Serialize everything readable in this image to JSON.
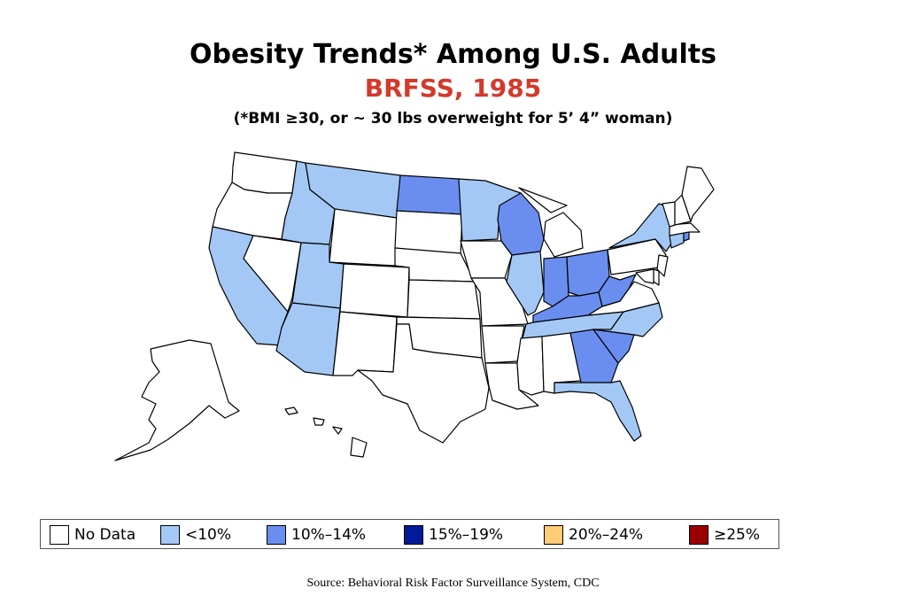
{
  "header": {
    "title": "Obesity Trends* Among U.S. Adults",
    "subtitle": "BRFSS, 1985",
    "note": "(*BMI ≥30, or ~ 30 lbs overweight for 5’ 4” woman)"
  },
  "legend": [
    {
      "label": "No Data",
      "color": "#ffffff"
    },
    {
      "label": "<10%",
      "color": "#a3c8f5"
    },
    {
      "label": "10%–14%",
      "color": "#6a8ef0"
    },
    {
      "label": "15%–19%",
      "color": "#001a99"
    },
    {
      "label": "20%–24%",
      "color": "#ffcc77"
    },
    {
      "label": "≥25%",
      "color": "#990000"
    }
  ],
  "states": {
    "WA": "No Data",
    "OR": "No Data",
    "CA": "<10%",
    "NV": "No Data",
    "ID": "<10%",
    "MT": "<10%",
    "WY": "No Data",
    "UT": "<10%",
    "AZ": "<10%",
    "CO": "No Data",
    "NM": "No Data",
    "ND": "10%–14%",
    "SD": "No Data",
    "NE": "No Data",
    "KS": "No Data",
    "OK": "No Data",
    "TX": "No Data",
    "MN": "<10%",
    "IA": "No Data",
    "MO": "No Data",
    "AR": "No Data",
    "LA": "No Data",
    "WI": "10%–14%",
    "IL": "<10%",
    "MI": "No Data",
    "IN": "10%–14%",
    "OH": "10%–14%",
    "KY": "10%–14%",
    "TN": "<10%",
    "MS": "No Data",
    "AL": "No Data",
    "GA": "10%–14%",
    "FL": "<10%",
    "SC": "10%–14%",
    "NC": "<10%",
    "VA": "No Data",
    "WV": "10%–14%",
    "PA": "No Data",
    "NY": "<10%",
    "NJ": "No Data",
    "DE": "No Data",
    "MD": "No Data",
    "CT": "<10%",
    "RI": "10%–14%",
    "MA": "No Data",
    "VT": "No Data",
    "NH": "No Data",
    "ME": "No Data",
    "AK": "No Data",
    "HI": "No Data"
  },
  "footer": {
    "source": "Source: Behavioral Risk Factor Surveillance System, CDC"
  }
}
